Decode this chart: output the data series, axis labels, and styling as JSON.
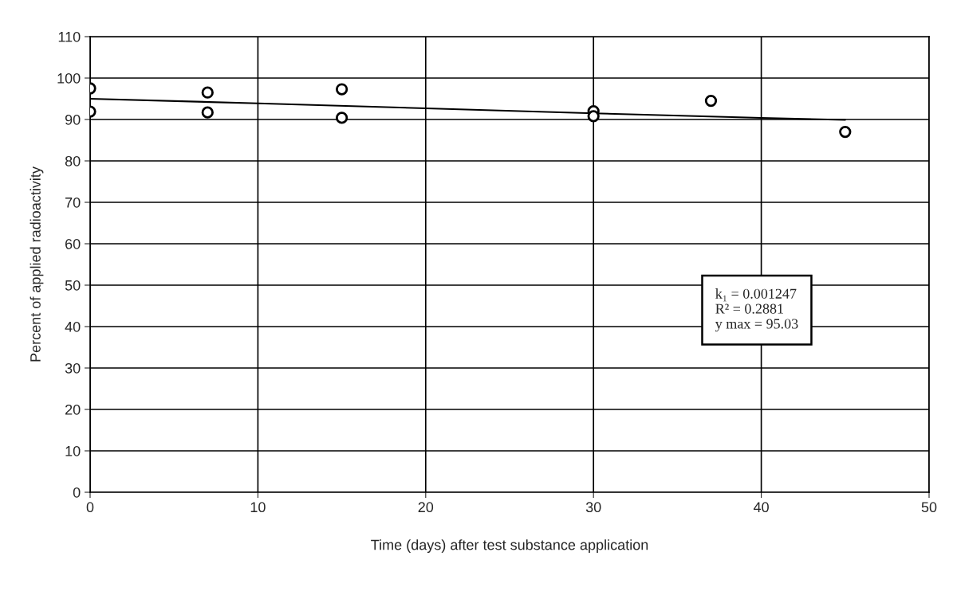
{
  "chart_data": {
    "type": "scatter",
    "xlabel": "Time (days) after test substance application",
    "ylabel": "Percent of applied radioactivity",
    "xlim": [
      0,
      50
    ],
    "xticks": [
      0,
      10,
      20,
      30,
      40,
      50
    ],
    "ylim": [
      0,
      110
    ],
    "yticks": [
      0,
      10,
      20,
      30,
      40,
      50,
      60,
      70,
      80,
      90,
      100,
      110
    ],
    "grid": true,
    "legend": false,
    "series": [
      {
        "marker": "circle",
        "color": "#000000",
        "x": [
          0,
          0,
          7,
          7,
          15,
          15,
          30,
          30,
          37,
          45
        ],
        "values": [
          97.5,
          91.9,
          96.5,
          91.7,
          97.3,
          90.4,
          92.0,
          90.8,
          94.5,
          87.0
        ]
      },
      {
        "type": "line",
        "marker": "none",
        "color": "#000000",
        "x": [
          0,
          10,
          20,
          30,
          40,
          45
        ],
        "values": [
          95.0,
          93.9,
          92.7,
          91.5,
          90.4,
          89.9
        ]
      }
    ],
    "annotations": [
      "k₁ = 0.001247\nR² = 0.2881\ny max = 95.03"
    ]
  }
}
